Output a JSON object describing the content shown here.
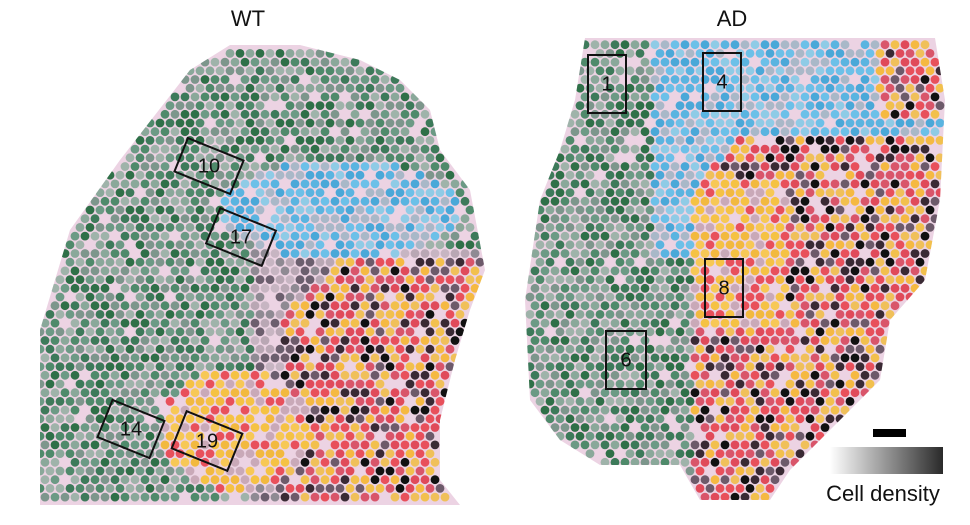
{
  "panels": [
    {
      "title": "WT",
      "regions": [
        "10",
        "17",
        "14",
        "19"
      ]
    },
    {
      "title": "AD",
      "regions": [
        "1",
        "4",
        "8",
        "6"
      ]
    }
  ],
  "legend": {
    "label": "Cell density"
  }
}
